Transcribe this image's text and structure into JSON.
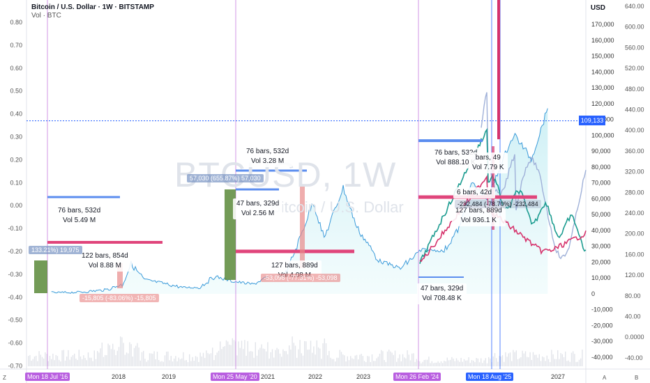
{
  "header": {
    "title": "Bitcoin / U.S. Dollar · 1W · BITSTAMP",
    "vol_label": "Vol · BTC"
  },
  "watermark": {
    "symbol": "BTCUSD, 1W",
    "name": "Bitcoin / U.S. Dollar"
  },
  "currency_label": "USD",
  "last_price_tag": "109,133",
  "left_scale_ticks": [
    "0.80",
    "0.70",
    "0.60",
    "0.50",
    "0.40",
    "0.30",
    "0.20",
    "0.10",
    "0.00",
    "-0.10",
    "-0.20",
    "-0.30",
    "-0.40",
    "-0.50",
    "-0.60",
    "-0.70"
  ],
  "price_scale_ticks": [
    "170,000",
    "160,000",
    "150,000",
    "140,000",
    "130,000",
    "120,000",
    "110,000",
    "100,000",
    "90,000",
    "80,000",
    "70,000",
    "60,000",
    "50,000",
    "40,000",
    "30,000",
    "20,000",
    "10,000",
    "0",
    "-10,000",
    "-20,000",
    "-30,000",
    "-40,000"
  ],
  "right_scale_ticks": [
    "640.00",
    "600.00",
    "560.00",
    "520.00",
    "480.00",
    "440.00",
    "400.00",
    "360.00",
    "320.00",
    "280.00",
    "240.00",
    "200.00",
    "160.00",
    "120.00",
    "80.00",
    "40.00",
    "0.0000",
    "-40.00"
  ],
  "x_ticks": [
    "2018",
    "2019",
    "2021",
    "2022",
    "2023",
    "2027"
  ],
  "date_tags": [
    "Mon 18 Jul '16",
    "Mon 25 May '20",
    "Mon 26 Feb '24",
    "Mon 18 Aug '25"
  ],
  "corner_labels": {
    "bottom_left": "Z",
    "a": "A",
    "b": "B"
  },
  "annotations": {
    "cycle1_range": {
      "bars": "76 bars, 532d",
      "vol": "Vol 5.49 M"
    },
    "cycle1_bear": {
      "bars": "122 bars, 854d",
      "vol": "Vol 8.88 M"
    },
    "cycle2_range": {
      "bars": "76 bars, 532d",
      "vol": "Vol 3.28 M"
    },
    "cycle2_mid": {
      "bars": "47 bars, 329d",
      "vol": "Vol 2.56 M"
    },
    "cycle2_bear": {
      "bars": "127 bars, 889d",
      "vol": "Vol 4.08 M"
    },
    "cycle3_range": {
      "bars": "76 bars, 532d",
      "vol": "Vol 888.10 K"
    },
    "cycle3_mid": {
      "bars": "47 bars, 329d",
      "vol": "Vol 708.48 K"
    },
    "cycle3_proj1": {
      "bars": "127 bars, 889d",
      "vol": "Vol 936.1 K"
    },
    "cycle3_proj2": {
      "bars": "bars, 49",
      "vol": "Vol 7.79 K"
    },
    "cycle3_proj3": {
      "bars": "6 bars, 42d",
      "vol": "Vol 936.1 K"
    },
    "pct_1": "133.21%) 19,975",
    "pct_2": "-15,805 (-83.06%) -15,805",
    "pct_3": "57,030 (655.87%) 57,030",
    "pct_4": "-53,098 (-77.31%) -53,098",
    "pct_5": "-232,484 (-78.70%) -232,484"
  },
  "colors": {
    "price_line": "#3a9ad9",
    "projection_teal": "#1a9b8f",
    "projection_pink": "#d6336c",
    "projection_lavender": "#9fb0d8",
    "range_blue": "#5b8def",
    "range_pink": "#e0457b",
    "bull_box": "#5a8a3a",
    "bear_box": "#e88a8a",
    "vline": "#c57be0",
    "area_fill": "#d9f5f8"
  },
  "chart_data": {
    "type": "line",
    "title": "Bitcoin / U.S. Dollar · 1W · BITSTAMP",
    "xlabel": "",
    "ylabel": "USD",
    "ylim": [
      -40000,
      170000
    ],
    "series": [
      {
        "name": "",
        "x": [
          2016.5,
          2017.0,
          2017.5,
          2017.8,
          2017.96,
          2018.2,
          2018.5,
          2018.9,
          2019.2,
          2019.5,
          2019.8,
          2020.2,
          2020.4,
          2020.8,
          2021.0,
          2021.3,
          2021.5,
          2021.85,
          2022.1,
          2022.5,
          2022.9,
          2023.3,
          2023.7,
          2024.0,
          2024.2,
          2024.5,
          2024.9,
          2025.0,
          2025.3,
          2025.6
        ],
        "values": [
          700,
          1000,
          2500,
          6000,
          19000,
          9000,
          7000,
          4000,
          4000,
          11000,
          8000,
          6000,
          9500,
          13000,
          30000,
          58000,
          35000,
          67000,
          42000,
          21000,
          16000,
          28000,
          27000,
          43000,
          70000,
          60000,
          95000,
          100000,
          85000,
          117000
        ]
      }
    ]
  }
}
